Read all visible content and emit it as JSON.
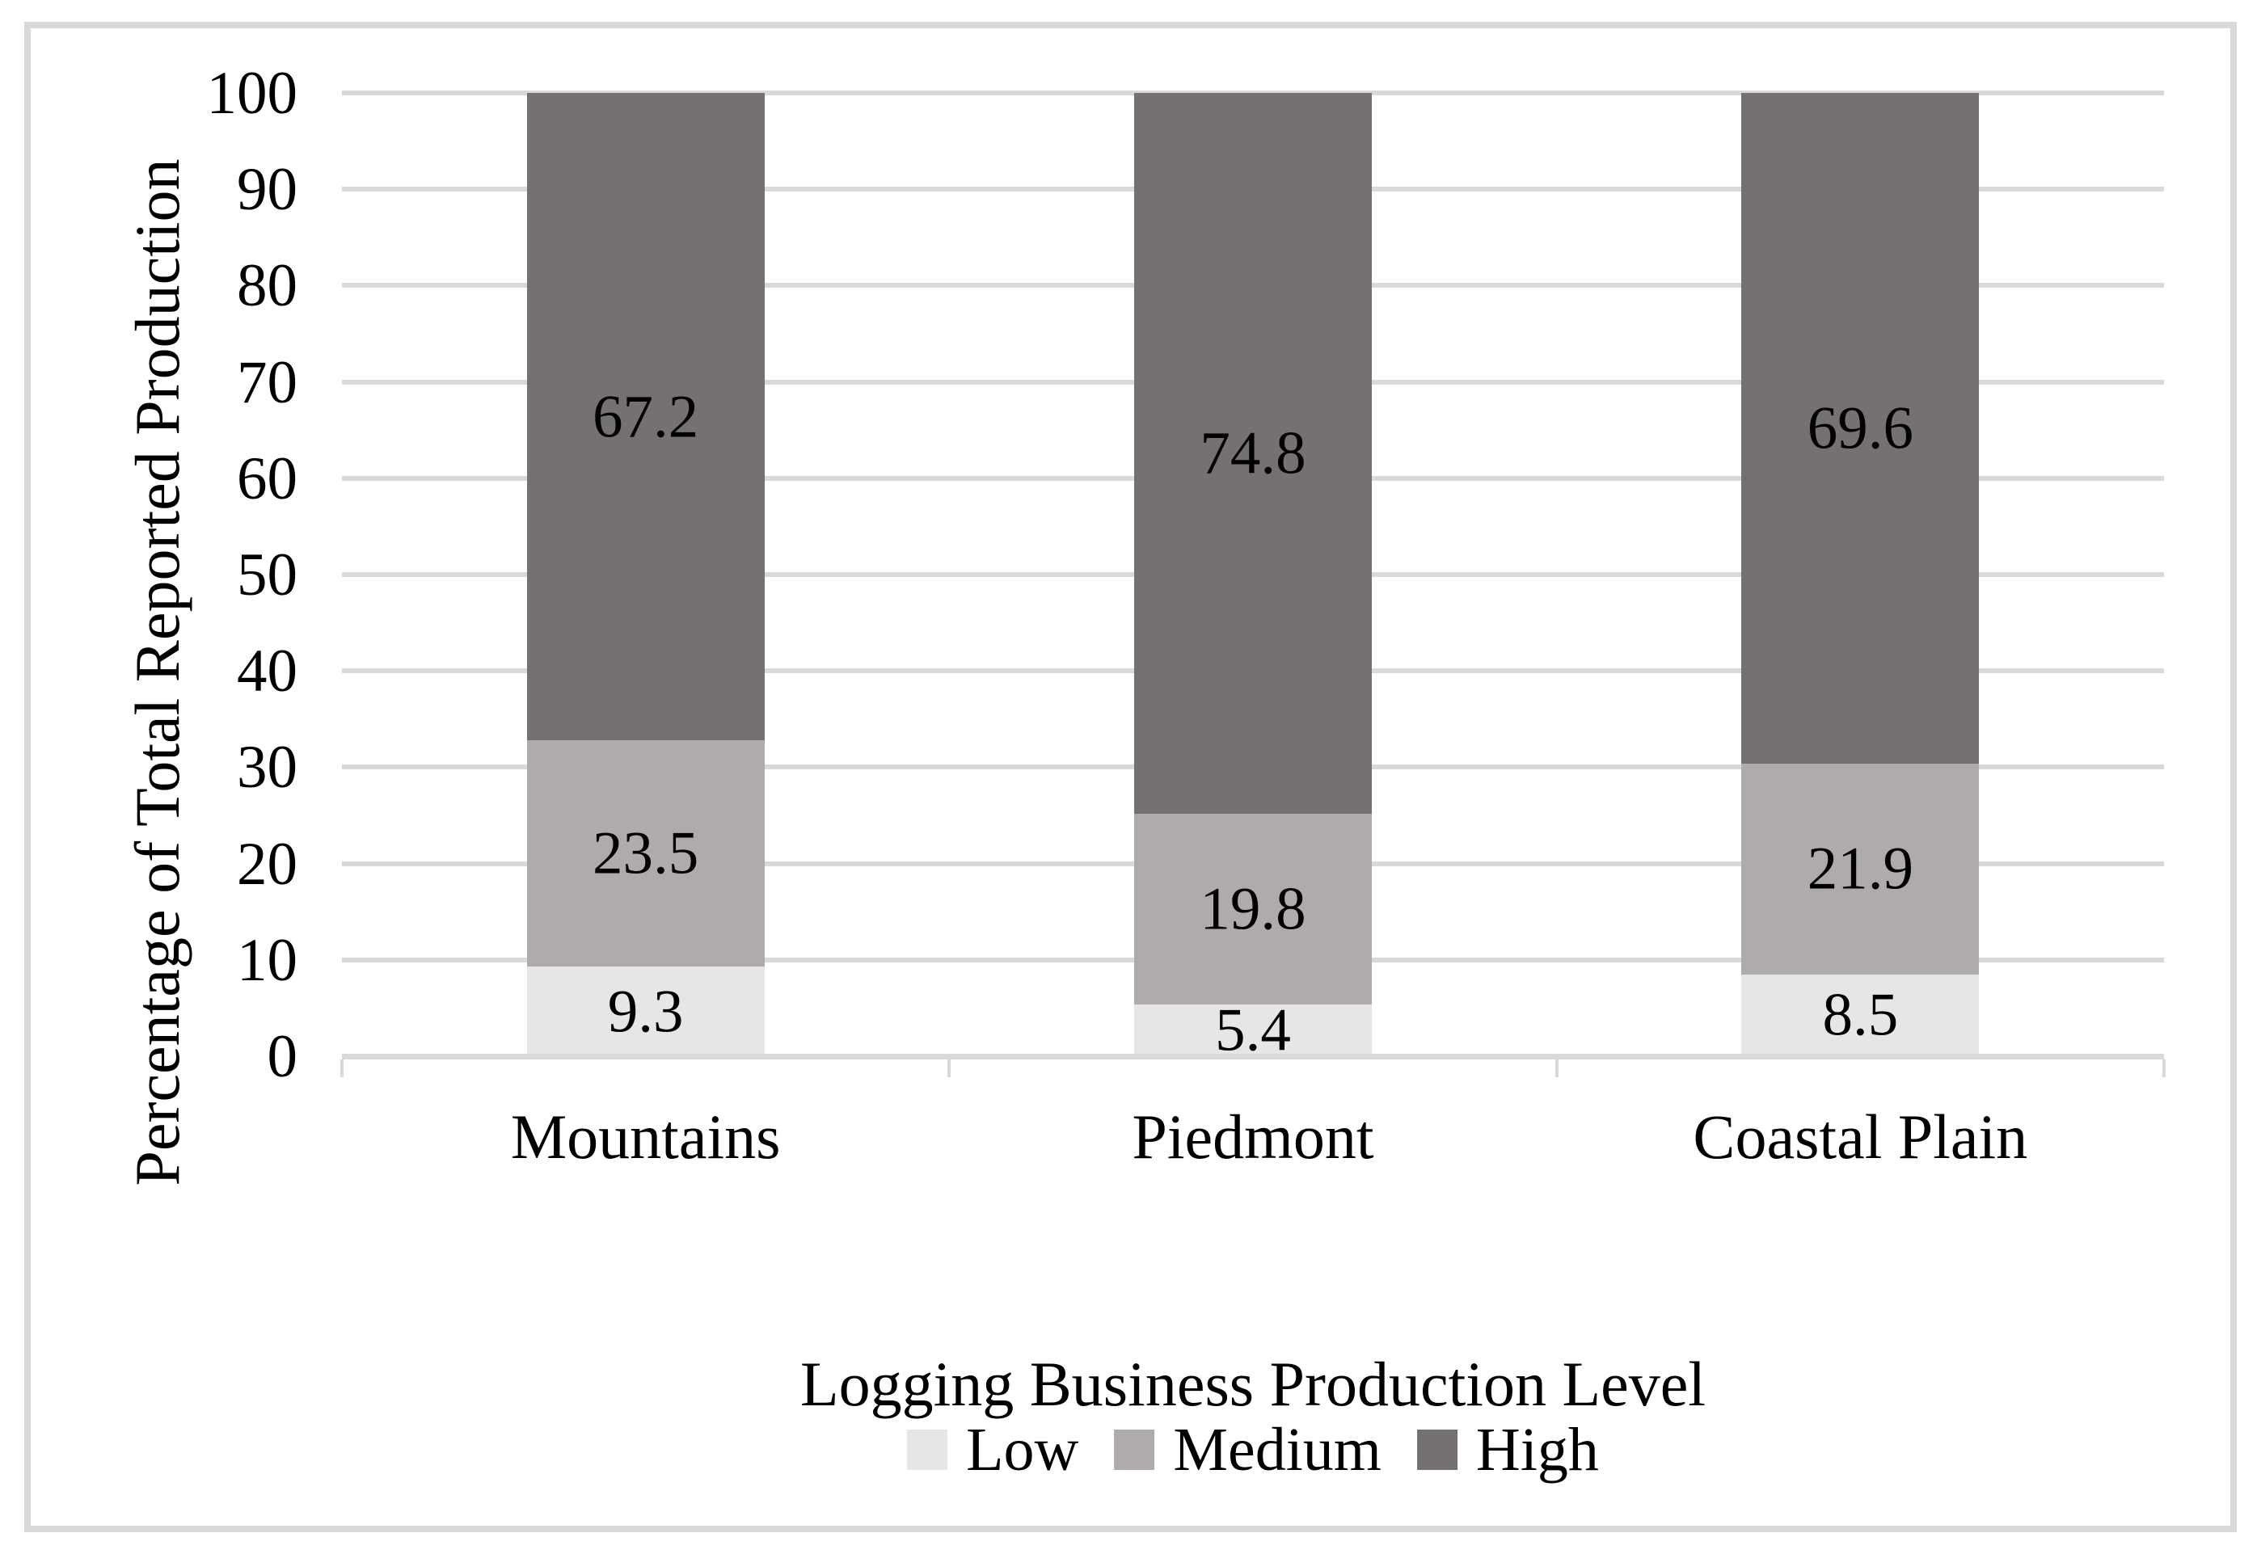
{
  "chart_data": {
    "type": "bar",
    "stacked": true,
    "categories": [
      "Mountains",
      "Piedmont",
      "Coastal Plain"
    ],
    "series": [
      {
        "name": "Low",
        "color": "#e7e6e6",
        "values": [
          9.3,
          5.4,
          8.5
        ]
      },
      {
        "name": "Medium",
        "color": "#afabab",
        "values": [
          23.5,
          19.8,
          21.9
        ]
      },
      {
        "name": "High",
        "color": "#767171",
        "values": [
          67.2,
          74.8,
          69.6
        ]
      }
    ],
    "ylabel": "Percentage of Total Reported Production",
    "ylim": [
      0,
      100
    ],
    "ytick_step": 10,
    "ytick_labels": [
      "0",
      "10",
      "20",
      "30",
      "40",
      "50",
      "60",
      "70",
      "80",
      "90",
      "100"
    ],
    "grid": true,
    "legend": {
      "position": "bottom",
      "title": "Logging Business Production Level"
    },
    "colors": {
      "gridline": "#d9d9d9",
      "axis_line": "#d9d9d9",
      "frame": "#d9d9d9",
      "text": "#000000",
      "background": "#ffffff"
    }
  }
}
